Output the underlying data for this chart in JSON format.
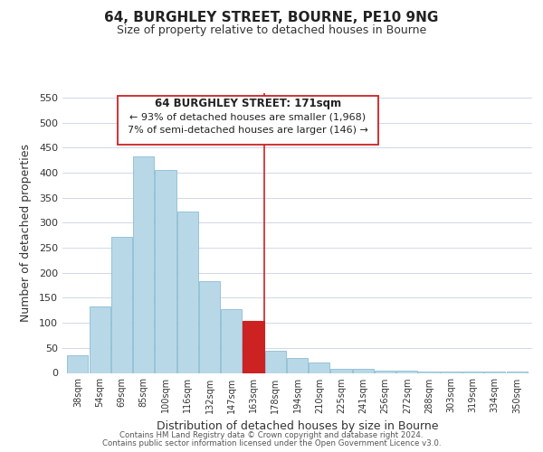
{
  "title": "64, BURGHLEY STREET, BOURNE, PE10 9NG",
  "subtitle": "Size of property relative to detached houses in Bourne",
  "xlabel": "Distribution of detached houses by size in Bourne",
  "ylabel": "Number of detached properties",
  "bar_labels": [
    "38sqm",
    "54sqm",
    "69sqm",
    "85sqm",
    "100sqm",
    "116sqm",
    "132sqm",
    "147sqm",
    "163sqm",
    "178sqm",
    "194sqm",
    "210sqm",
    "225sqm",
    "241sqm",
    "256sqm",
    "272sqm",
    "288sqm",
    "303sqm",
    "319sqm",
    "334sqm",
    "350sqm"
  ],
  "bar_values": [
    35,
    133,
    272,
    433,
    405,
    323,
    184,
    128,
    103,
    45,
    30,
    20,
    8,
    8,
    5,
    5,
    3,
    3,
    2,
    2,
    2
  ],
  "bar_color": "#b8d8e8",
  "bar_edge_color": "#7ab4cc",
  "highlight_bar_index": 8,
  "highlight_bar_color": "#cc2222",
  "vline_x": 8.5,
  "vline_color": "#cc2222",
  "annotation_title": "64 BURGHLEY STREET: 171sqm",
  "annotation_line1": "← 93% of detached houses are smaller (1,968)",
  "annotation_line2": "7% of semi-detached houses are larger (146) →",
  "ylim": [
    0,
    560
  ],
  "yticks": [
    0,
    50,
    100,
    150,
    200,
    250,
    300,
    350,
    400,
    450,
    500,
    550
  ],
  "footnote1": "Contains HM Land Registry data © Crown copyright and database right 2024.",
  "footnote2": "Contains public sector information licensed under the Open Government Licence v3.0.",
  "background_color": "#ffffff",
  "grid_color": "#d0d8e8"
}
